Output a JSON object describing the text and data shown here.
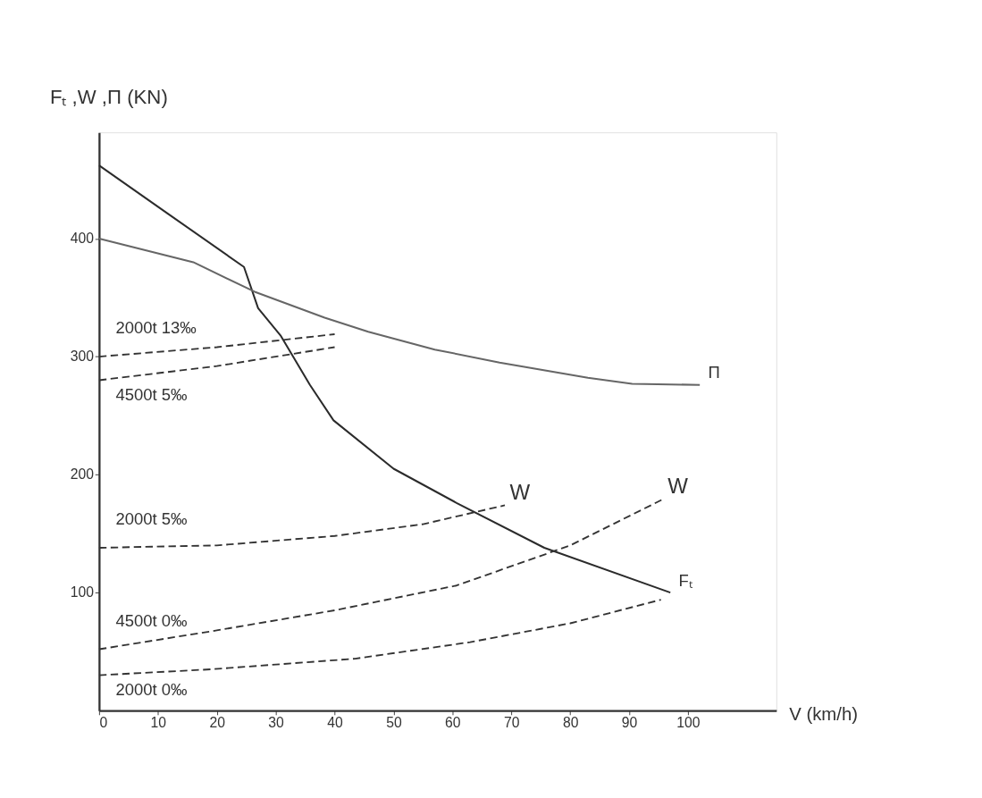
{
  "chart_data": {
    "type": "line",
    "ylabel": "Fₜ ,W ,Π (KN)",
    "xlabel": "V (km/h)",
    "xlim": [
      0,
      115
    ],
    "ylim": [
      0,
      490
    ],
    "xticks": [
      0,
      10,
      20,
      30,
      40,
      50,
      60,
      70,
      80,
      90,
      100
    ],
    "yticks": [
      100,
      200,
      300,
      400
    ],
    "grid": false,
    "marker": "none",
    "annotations": [
      {
        "text": "W",
        "x": 68.9,
        "y": 174
      },
      {
        "text": "W",
        "x": 95.7,
        "y": 179
      }
    ],
    "series": [
      {
        "name": "Fₜ",
        "color": "#2b2b2b",
        "line_style": "solid",
        "x": [
          0,
          12,
          24.6,
          27,
          30.8,
          35.8,
          39.8,
          50,
          60.7,
          75.6,
          97
        ],
        "values": [
          462,
          420,
          376,
          341,
          318,
          276,
          246,
          205,
          176,
          138,
          100
        ]
      },
      {
        "name": "Π",
        "color": "#666666",
        "line_style": "solid",
        "x": [
          0,
          16,
          26.4,
          38.3,
          45.7,
          57,
          68,
          83,
          90.5,
          102
        ],
        "values": [
          400,
          380,
          355,
          333,
          321,
          306,
          295,
          282,
          277,
          276
        ]
      },
      {
        "name": "2000t 13‰",
        "color": "#333333",
        "line_style": "dashed",
        "x": [
          0,
          20,
          40
        ],
        "values": [
          300,
          308,
          319
        ]
      },
      {
        "name": "4500t 5‰",
        "color": "#333333",
        "line_style": "dashed",
        "x": [
          0,
          20,
          40
        ],
        "values": [
          280,
          292,
          308
        ]
      },
      {
        "name": "2000t 5‰",
        "color": "#333333",
        "line_style": "dashed",
        "x": [
          0,
          20,
          40,
          55,
          68.9
        ],
        "values": [
          138,
          140,
          148,
          158,
          174
        ]
      },
      {
        "name": "4500t 0‰",
        "color": "#333333",
        "line_style": "dashed",
        "x": [
          0,
          20,
          40,
          60.7,
          80,
          95.7
        ],
        "values": [
          52,
          68,
          85,
          106,
          140,
          179
        ]
      },
      {
        "name": "2000t 0‰",
        "color": "#333333",
        "line_style": "dashed",
        "x": [
          0,
          19,
          43.5,
          63,
          80,
          95.4
        ],
        "values": [
          30,
          35,
          44,
          58,
          74,
          94
        ]
      }
    ]
  }
}
